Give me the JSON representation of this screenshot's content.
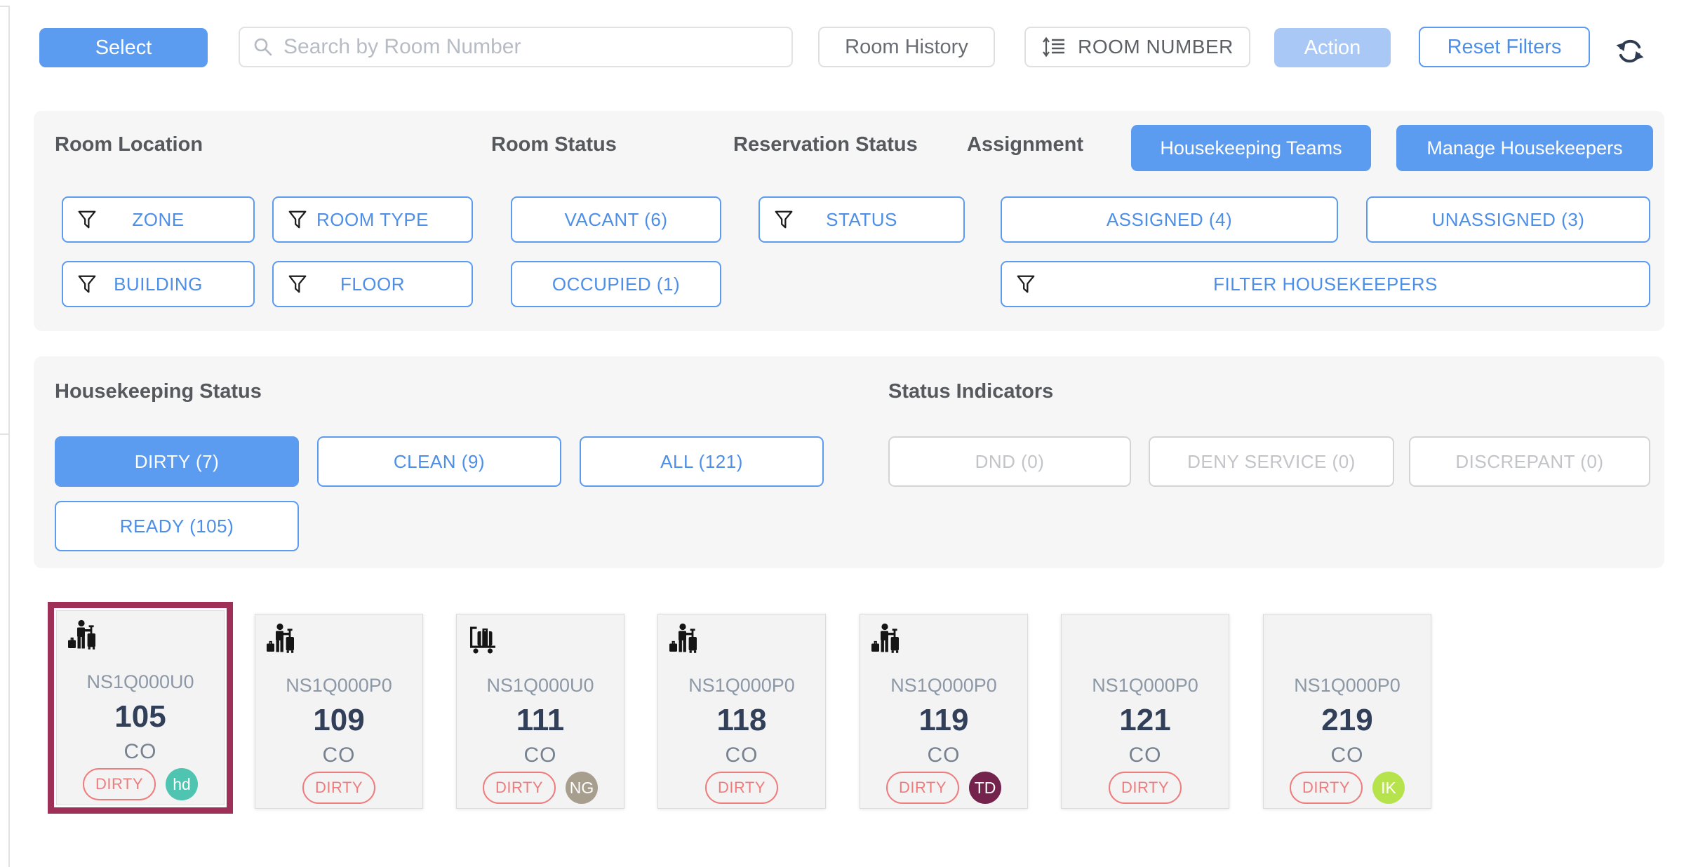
{
  "toolbar": {
    "select": "Select",
    "search_placeholder": "Search by Room Number",
    "search_icon": "search-icon",
    "room_history": "Room History",
    "sort_icon": "sort-list-icon",
    "sort_label": "ROOM NUMBER",
    "action": "Action",
    "reset_filters": "Reset Filters",
    "refresh_icon": "refresh-icon"
  },
  "filters": {
    "room_location": {
      "title": "Room Location",
      "zone": "ZONE",
      "room_type": "ROOM TYPE",
      "building": "BUILDING",
      "floor": "FLOOR",
      "filter_icon": "funnel-icon"
    },
    "room_status": {
      "title": "Room Status",
      "vacant": "VACANT (6)",
      "occupied": "OCCUPIED (1)"
    },
    "reservation_status": {
      "title": "Reservation Status",
      "status": "STATUS"
    },
    "assignment": {
      "title": "Assignment",
      "assigned": "ASSIGNED (4)",
      "unassigned": "UNASSIGNED (3)",
      "filter_housekeepers": "FILTER HOUSEKEEPERS"
    },
    "housekeeping_teams": "Housekeeping Teams",
    "manage_housekeepers": "Manage Housekeepers"
  },
  "housekeeping_status": {
    "title": "Housekeeping Status",
    "dirty": "DIRTY (7)",
    "clean": "CLEAN (9)",
    "all": "ALL (121)",
    "ready": "READY (105)",
    "selected_filter": "DIRTY (7)"
  },
  "status_indicators": {
    "title": "Status Indicators",
    "dnd": "DND (0)",
    "deny_service": "DENY SERVICE (0)",
    "discrepant": "DISCREPANT (0)"
  },
  "rooms": [
    {
      "room_type": "NS1Q000U0",
      "number": "105",
      "reservation": "CO",
      "status": "DIRTY",
      "icon": "departing-guest-icon",
      "housekeeper": {
        "initials": "hd",
        "color": "#4fc4b0"
      },
      "selected": true
    },
    {
      "room_type": "NS1Q000P0",
      "number": "109",
      "reservation": "CO",
      "status": "DIRTY",
      "icon": "departing-guest-icon",
      "housekeeper": null,
      "selected": false
    },
    {
      "room_type": "NS1Q000U0",
      "number": "111",
      "reservation": "CO",
      "status": "DIRTY",
      "icon": "luggage-cart-icon",
      "housekeeper": {
        "initials": "NG",
        "color": "#a79e8e"
      },
      "selected": false
    },
    {
      "room_type": "NS1Q000P0",
      "number": "118",
      "reservation": "CO",
      "status": "DIRTY",
      "icon": "departing-guest-icon",
      "housekeeper": null,
      "selected": false
    },
    {
      "room_type": "NS1Q000P0",
      "number": "119",
      "reservation": "CO",
      "status": "DIRTY",
      "icon": "departing-guest-icon",
      "housekeeper": {
        "initials": "TD",
        "color": "#73234c"
      },
      "selected": false
    },
    {
      "room_type": "NS1Q000P0",
      "number": "121",
      "reservation": "CO",
      "status": "DIRTY",
      "icon": null,
      "housekeeper": null,
      "selected": false
    },
    {
      "room_type": "NS1Q000P0",
      "number": "219",
      "reservation": "CO",
      "status": "DIRTY",
      "icon": null,
      "housekeeper": {
        "initials": "IK",
        "color": "#b6e34c"
      },
      "selected": false
    }
  ],
  "colors": {
    "accent_blue": "#5b9bf0",
    "disabled_blue": "#a9c8f6",
    "selected_card_border": "#9e2f56",
    "dirty_badge": "#ef7c7c"
  }
}
